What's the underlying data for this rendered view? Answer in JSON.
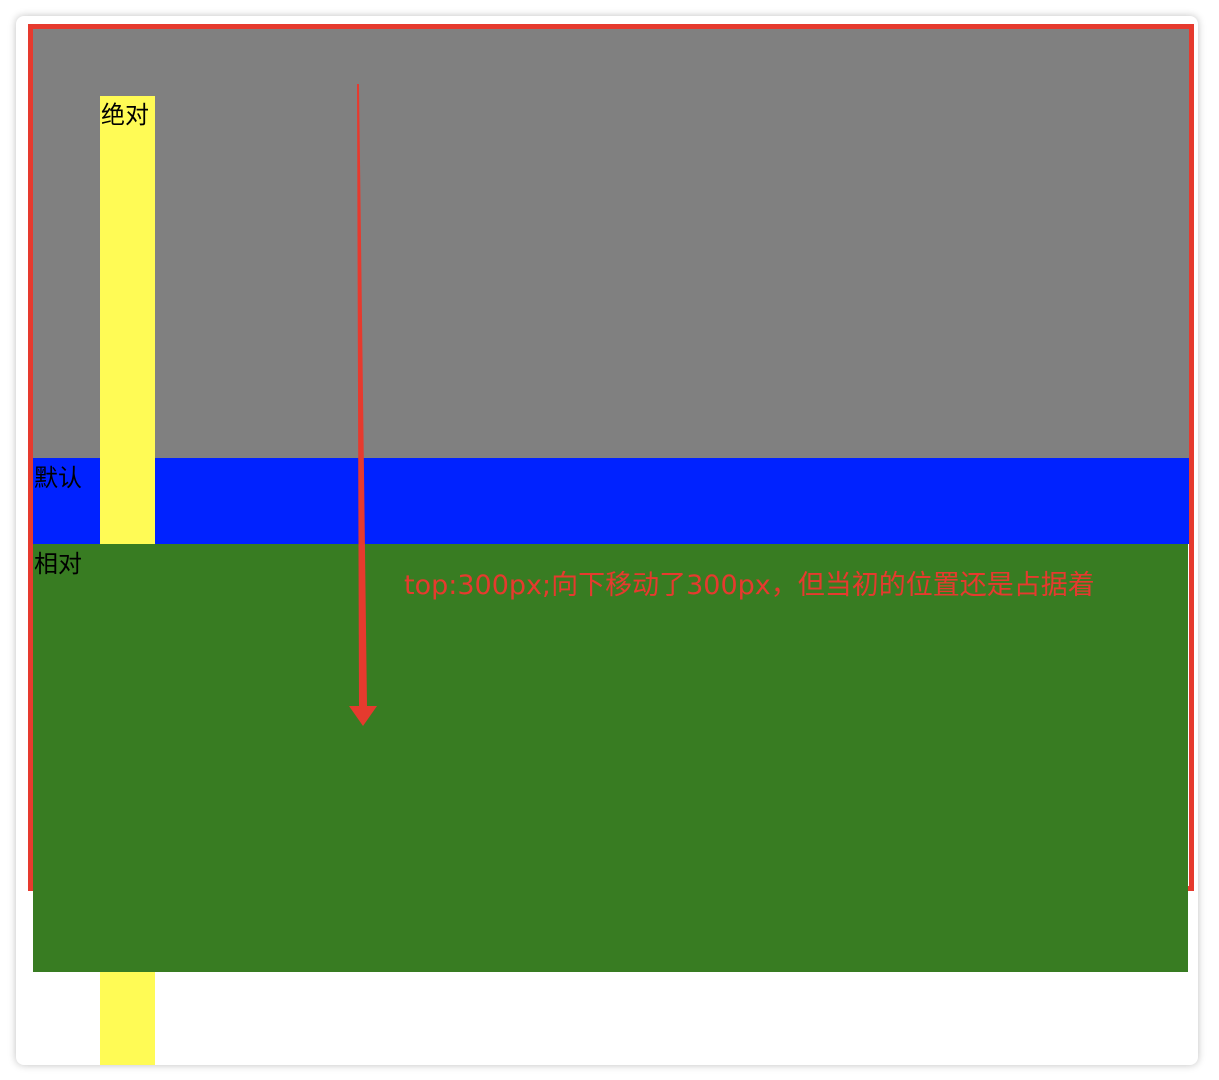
{
  "labels": {
    "absolute": "绝对",
    "default": "默认",
    "relative": "相对"
  },
  "annotation": "top:300px;向下移动了300px，但当初的位置还是占据着",
  "colors": {
    "border": "#e63a2e",
    "gray": "#808080",
    "blue": "#0022ff",
    "green": "#387c22",
    "yellow": "#fffb55",
    "annotation": "#e63a2e"
  },
  "icons": {
    "arrow": "arrow-down-icon"
  }
}
